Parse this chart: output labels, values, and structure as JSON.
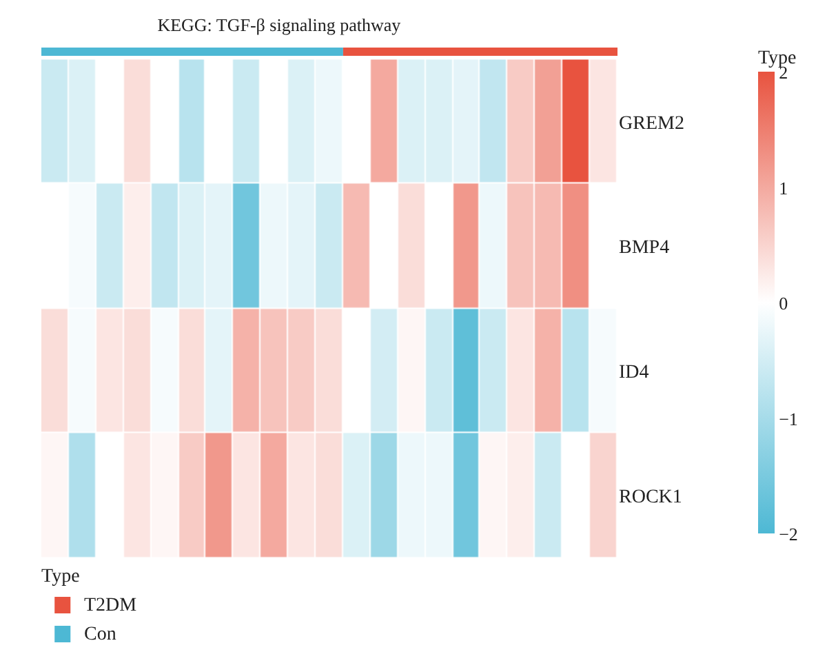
{
  "chart_data": {
    "type": "heatmap",
    "title": "KEGG: TGF-β signaling pathway",
    "categories": [
      null,
      null,
      null,
      null,
      null,
      null,
      null,
      null,
      null,
      null,
      null,
      null,
      null,
      null,
      null,
      null,
      null,
      null,
      null,
      null,
      null
    ],
    "y_categories": [
      "GREM2",
      "BMP4",
      "ID4",
      "ROCK1"
    ],
    "cells": [
      [
        -0.6,
        -0.4,
        0,
        0.4,
        0,
        -0.8,
        0,
        -0.6,
        0,
        -0.4,
        -0.2,
        0,
        1.0,
        -0.4,
        -0.4,
        -0.3,
        -0.7,
        0.6,
        1.1,
        2.0,
        0.3
      ],
      [
        0,
        -0.1,
        -0.6,
        0.2,
        -0.7,
        -0.4,
        -0.3,
        -1.6,
        -0.2,
        -0.3,
        -0.6,
        0.8,
        0,
        0.4,
        0,
        1.2,
        -0.2,
        0.7,
        0.8,
        1.3,
        0
      ],
      [
        0.4,
        -0.1,
        0.3,
        0.4,
        -0.1,
        0.4,
        -0.3,
        0.9,
        0.7,
        0.6,
        0.4,
        0,
        -0.5,
        0.1,
        -0.6,
        -1.8,
        -0.6,
        0.3,
        0.9,
        -0.8,
        -0.1
      ],
      [
        0.1,
        -0.9,
        0,
        0.3,
        0.1,
        0.6,
        1.2,
        0.3,
        1.0,
        0.3,
        0.4,
        -0.4,
        -1.1,
        -0.2,
        -0.2,
        -1.6,
        0.1,
        0.2,
        -0.6,
        0,
        0.5
      ]
    ],
    "colors": [
      "#4db8d4",
      "#ffffff",
      "#e8533f"
    ],
    "clim": [
      -2,
      2
    ],
    "cticks": [
      {
        "value": -2,
        "label": "−2"
      },
      {
        "value": -1,
        "label": "−1"
      },
      0,
      1,
      2
    ],
    "clabel": "Type",
    "legend_title": "Type",
    "annotations": [
      "T2DM",
      "Con"
    ]
  }
}
